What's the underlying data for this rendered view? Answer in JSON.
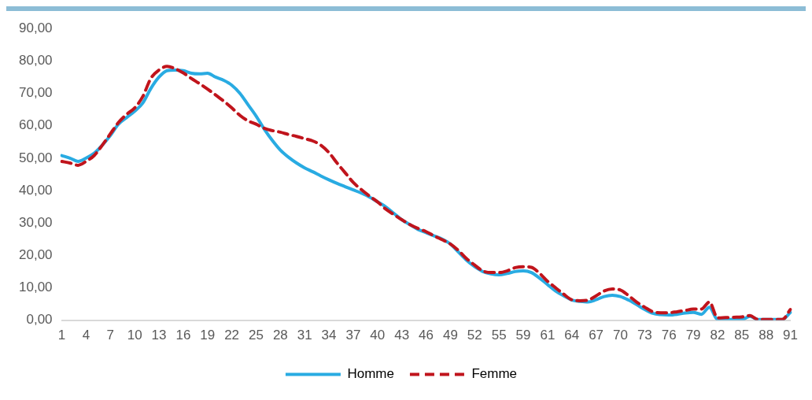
{
  "chart_data": {
    "type": "line",
    "categories": [
      "1",
      null,
      null,
      "4",
      null,
      null,
      "7",
      null,
      null,
      "10",
      null,
      null,
      "13",
      null,
      null,
      "16",
      null,
      null,
      "19",
      null,
      null,
      "22",
      null,
      null,
      "25",
      null,
      null,
      "28",
      null,
      null,
      "31",
      null,
      null,
      "34",
      null,
      null,
      "37",
      null,
      null,
      "40",
      null,
      null,
      "43",
      null,
      null,
      "46",
      null,
      null,
      "49",
      null,
      null,
      "52",
      null,
      null,
      "55",
      null,
      null,
      "59",
      null,
      null,
      "61",
      null,
      null,
      "64",
      null,
      null,
      "67",
      null,
      null,
      "70",
      null,
      null,
      "73",
      null,
      null,
      "76",
      null,
      null,
      "79",
      null,
      null,
      "82",
      null,
      null,
      "85",
      null,
      null,
      "88",
      null,
      null,
      "91"
    ],
    "series": [
      {
        "name": "Homme",
        "color": "#29abe2",
        "line_style": "solid",
        "values": [
          50.8,
          50,
          49,
          50,
          51.5,
          54,
          57,
          60.5,
          62.5,
          64.5,
          67,
          71.5,
          75,
          77,
          77.2,
          77,
          76.2,
          76,
          76.2,
          75,
          74,
          72.5,
          70,
          66.5,
          63,
          59,
          55.5,
          52.5,
          50.3,
          48.5,
          47,
          45.8,
          44.5,
          43.3,
          42.2,
          41.2,
          40.2,
          39.2,
          38,
          36.5,
          35,
          33,
          31,
          29.5,
          28,
          27,
          26,
          25,
          23.5,
          21,
          18.5,
          16.5,
          15,
          14.3,
          14,
          14.4,
          15,
          15.2,
          14.7,
          13,
          11,
          9,
          7.5,
          6.2,
          5.8,
          5.6,
          6.3,
          7.3,
          7.7,
          7.3,
          6.2,
          4.8,
          3.3,
          2.1,
          1.7,
          1.6,
          1.8,
          2.2,
          2.4,
          1.8,
          4,
          0.2,
          0.2,
          0.2,
          0.2,
          1.2,
          0.2,
          0.2,
          0.2,
          0.2,
          2.4
        ]
      },
      {
        "name": "Femme",
        "color": "#c0141c",
        "line_style": "dashed",
        "values": [
          49,
          48.5,
          47.8,
          49,
          50.8,
          54,
          57.5,
          61,
          63.5,
          65.5,
          69,
          74.6,
          77.2,
          78.3,
          77.6,
          76.3,
          74.6,
          73,
          71.3,
          69.5,
          67.6,
          65.5,
          63.2,
          61.5,
          60.5,
          59.2,
          58.5,
          58,
          57.3,
          56.7,
          56,
          55.3,
          54,
          51.7,
          48.5,
          45.5,
          42.5,
          40.3,
          38.3,
          36.5,
          34.3,
          32.6,
          31,
          29.5,
          28.3,
          27.3,
          26,
          24.8,
          23.5,
          21.5,
          19,
          17,
          15.2,
          14.7,
          14.7,
          15.2,
          16.2,
          16.5,
          16.3,
          14.5,
          12,
          10,
          8,
          6.3,
          6,
          6.2,
          7.5,
          9,
          9.6,
          9.3,
          7.6,
          5.6,
          4,
          2.6,
          2.3,
          2.3,
          2.6,
          3,
          3.4,
          3.4,
          5.6,
          0.7,
          0.8,
          0.9,
          1,
          1.4,
          0.2,
          0.2,
          0.2,
          0.2,
          3.3
        ]
      }
    ],
    "ylim": [
      0,
      90
    ],
    "yticks": [
      {
        "value": 0,
        "label": "0,00"
      },
      {
        "value": 10,
        "label": "10,00"
      },
      {
        "value": 20,
        "label": "20,00"
      },
      {
        "value": 30,
        "label": "30,00"
      },
      {
        "value": 40,
        "label": "40,00"
      },
      {
        "value": 50,
        "label": "50,00"
      },
      {
        "value": 60,
        "label": "60,00"
      },
      {
        "value": 70,
        "label": "70,00"
      },
      {
        "value": 80,
        "label": "80,00"
      },
      {
        "value": 90,
        "label": "90,00"
      }
    ],
    "grid": false,
    "legend": "bottom",
    "marker": "none"
  }
}
